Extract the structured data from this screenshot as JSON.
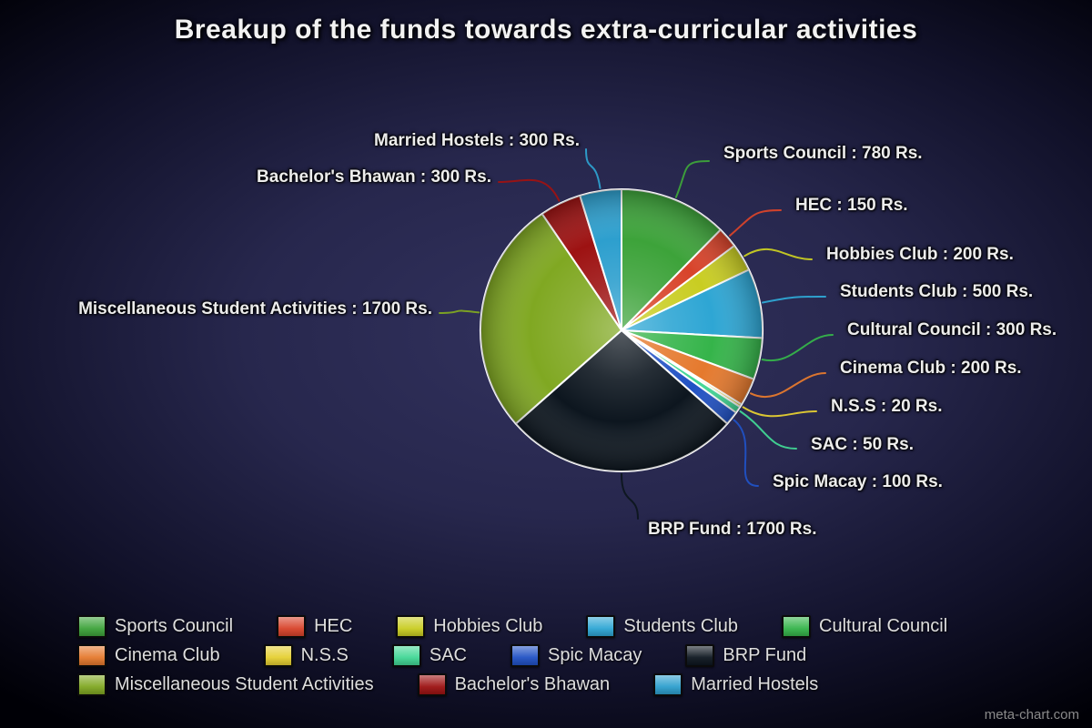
{
  "title": "Breakup of the funds towards extra-curricular activities",
  "watermark": "meta-chart.com",
  "chart_data": {
    "type": "pie",
    "title": "Breakup of the funds towards extra-curricular activities",
    "unit": "Rs.",
    "legend_position": "bottom",
    "slices": [
      {
        "name": "Sports Council",
        "value": 780,
        "color": "#3da33a",
        "label": "Sports Council : 780 Rs."
      },
      {
        "name": "HEC",
        "value": 150,
        "color": "#d8432a",
        "label": "HEC : 150 Rs."
      },
      {
        "name": "Hobbies Club",
        "value": 200,
        "color": "#c9cd22",
        "label": "Hobbies Club : 200 Rs."
      },
      {
        "name": "Students Club",
        "value": 500,
        "color": "#2ea6d4",
        "label": "Students Club : 500 Rs."
      },
      {
        "name": "Cultural Council",
        "value": 300,
        "color": "#35b44a",
        "label": "Cultural Council : 300 Rs."
      },
      {
        "name": "Cinema Club",
        "value": 200,
        "color": "#e5792d",
        "label": "Cinema Club : 200 Rs."
      },
      {
        "name": "N.S.S",
        "value": 20,
        "color": "#e5cf31",
        "label": "N.S.S : 20 Rs."
      },
      {
        "name": "SAC",
        "value": 50,
        "color": "#41d795",
        "label": "SAC : 50 Rs."
      },
      {
        "name": "Spic Macay",
        "value": 100,
        "color": "#2051c4",
        "label": "Spic Macay : 100 Rs."
      },
      {
        "name": "BRP Fund",
        "value": 1700,
        "color": "#0d161f",
        "label": "BRP Fund : 1700 Rs."
      },
      {
        "name": "Miscellaneous Student Activities",
        "value": 1700,
        "color": "#80a822",
        "label": "Miscellaneous Student Activities : 1700 Rs."
      },
      {
        "name": "Bachelor's Bhawan",
        "value": 300,
        "color": "#9d1212",
        "label": "Bachelor's Bhawan : 300 Rs."
      },
      {
        "name": "Married Hostels",
        "value": 300,
        "color": "#2d9fce",
        "label": "Married Hostels : 300 Rs."
      }
    ],
    "legend_rows": [
      [
        "Sports Council",
        "HEC",
        "Hobbies Club",
        "Students Club",
        "Cultural Council"
      ],
      [
        "Cinema Club",
        "N.S.S",
        "SAC",
        "Spic Macay",
        "BRP Fund"
      ],
      [
        "Miscellaneous Student Activities",
        "Bachelor's Bhawan",
        "Married Hostels"
      ]
    ]
  }
}
